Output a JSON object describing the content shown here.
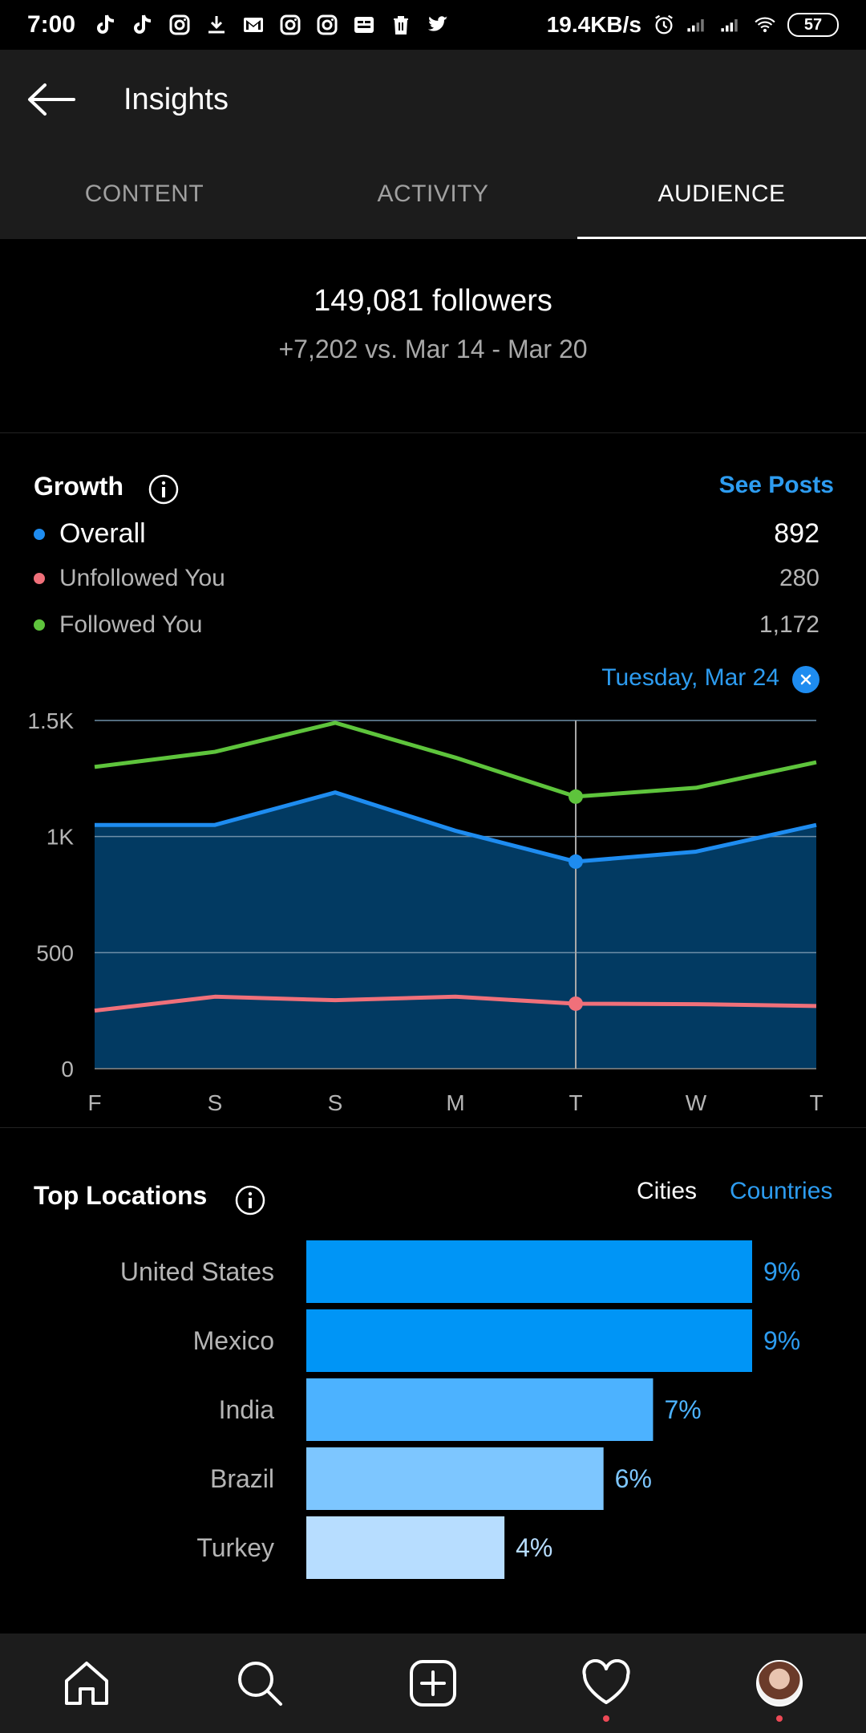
{
  "status_bar": {
    "time": "7:00",
    "speed": "19.4KB/s",
    "battery": "57"
  },
  "header": {
    "title": "Insights"
  },
  "tabs": [
    {
      "label": "CONTENT",
      "active": false
    },
    {
      "label": "ACTIVITY",
      "active": false
    },
    {
      "label": "AUDIENCE",
      "active": true
    }
  ],
  "summary": {
    "followers": "149,081 followers",
    "delta": "+7,202 vs. Mar 14 - Mar 20"
  },
  "growth": {
    "title": "Growth",
    "see_posts": "See Posts",
    "legend": [
      {
        "name": "Overall",
        "value": "892",
        "color": "#1e8cf0"
      },
      {
        "name": "Unfollowed You",
        "value": "280",
        "color": "#f0707a"
      },
      {
        "name": "Followed You",
        "value": "1,172",
        "color": "#5ec43c"
      }
    ],
    "selected_date": "Tuesday, Mar 24"
  },
  "chart_data": {
    "type": "line",
    "categories": [
      "F",
      "S",
      "S",
      "M",
      "T",
      "W",
      "T"
    ],
    "y_ticks": [
      "0",
      "500",
      "1K",
      "1.5K"
    ],
    "ylim": [
      0,
      1500
    ],
    "selected_index": 4,
    "series": [
      {
        "name": "Followed You",
        "color": "#5ec43c",
        "values": [
          1300,
          1365,
          1490,
          1340,
          1172,
          1210,
          1320
        ]
      },
      {
        "name": "Overall",
        "color": "#1e8cf0",
        "values": [
          1050,
          1050,
          1190,
          1025,
          892,
          935,
          1050
        ]
      },
      {
        "name": "Unfollowed You",
        "color": "#f0707a",
        "values": [
          250,
          310,
          295,
          310,
          280,
          278,
          270
        ]
      }
    ]
  },
  "locations": {
    "title": "Top Locations",
    "toggle_cities": "Cities",
    "toggle_countries": "Countries",
    "bars": [
      {
        "label": "United States",
        "value": 9,
        "display": "9%",
        "color": "#0095f6",
        "text_color": "#2d9cf0"
      },
      {
        "label": "Mexico",
        "value": 9,
        "display": "9%",
        "color": "#0095f6",
        "text_color": "#2d9cf0"
      },
      {
        "label": "India",
        "value": 7,
        "display": "7%",
        "color": "#4cb2ff",
        "text_color": "#4cb2ff"
      },
      {
        "label": "Brazil",
        "value": 6,
        "display": "6%",
        "color": "#7dc6ff",
        "text_color": "#7dc6ff"
      },
      {
        "label": "Turkey",
        "value": 4,
        "display": "4%",
        "color": "#b7ddff",
        "text_color": "#b7ddff"
      }
    ]
  },
  "nav": {
    "items": [
      "home-icon",
      "search-icon",
      "add-post-icon",
      "heart-icon",
      "profile-avatar"
    ]
  }
}
